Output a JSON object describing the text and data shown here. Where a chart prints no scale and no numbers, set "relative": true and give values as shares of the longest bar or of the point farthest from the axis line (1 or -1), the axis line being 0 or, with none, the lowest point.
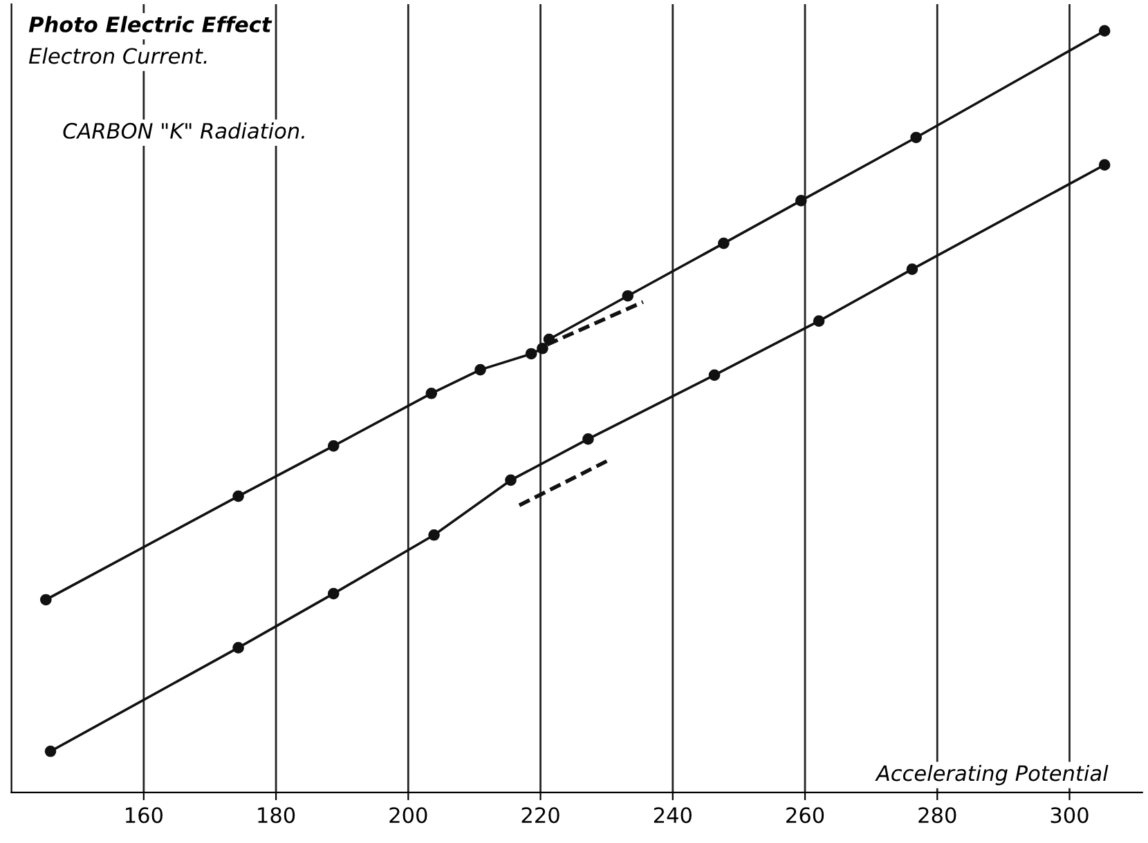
{
  "chart_data": {
    "type": "line",
    "title": "Photo Electric Effect",
    "subtitle": "Electron Current.",
    "xlabel": "Accelerating Potential",
    "annotations": [
      "CARBON \"K\" Radiation."
    ],
    "relative": true,
    "xlim": [
      140,
      311
    ],
    "xticks": [
      160,
      180,
      200,
      220,
      240,
      260,
      280,
      300
    ],
    "grid": "x",
    "marker": "circle",
    "line_style": "solid",
    "series": [
      {
        "color": "#111111",
        "x": [
          145.2,
          174.3,
          188.7,
          203.5,
          210.9,
          218.6,
          220.3,
          221.3,
          233.2,
          247.7,
          259.4,
          276.8,
          305.3
        ],
        "values": [
          0.253,
          0.389,
          0.455,
          0.524,
          0.555,
          0.576,
          0.583,
          0.595,
          0.652,
          0.721,
          0.777,
          0.86,
          1.0
        ]
      },
      {
        "color": "#111111",
        "x": [
          145.9,
          174.3,
          188.7,
          203.9,
          215.5,
          227.2,
          246.3,
          262.1,
          276.2,
          305.3
        ],
        "values": [
          0.054,
          0.19,
          0.261,
          0.338,
          0.41,
          0.464,
          0.548,
          0.619,
          0.687,
          0.824
        ]
      },
      {
        "type": "line",
        "color": "#111111",
        "marker": "none",
        "line_style": "dashed",
        "x": [
          221.0,
          235.5
        ],
        "values": [
          0.588,
          0.644
        ]
      },
      {
        "type": "line",
        "color": "#111111",
        "marker": "none",
        "line_style": "dashed",
        "x": [
          216.8,
          230.7
        ],
        "values": [
          0.377,
          0.438
        ]
      }
    ]
  }
}
